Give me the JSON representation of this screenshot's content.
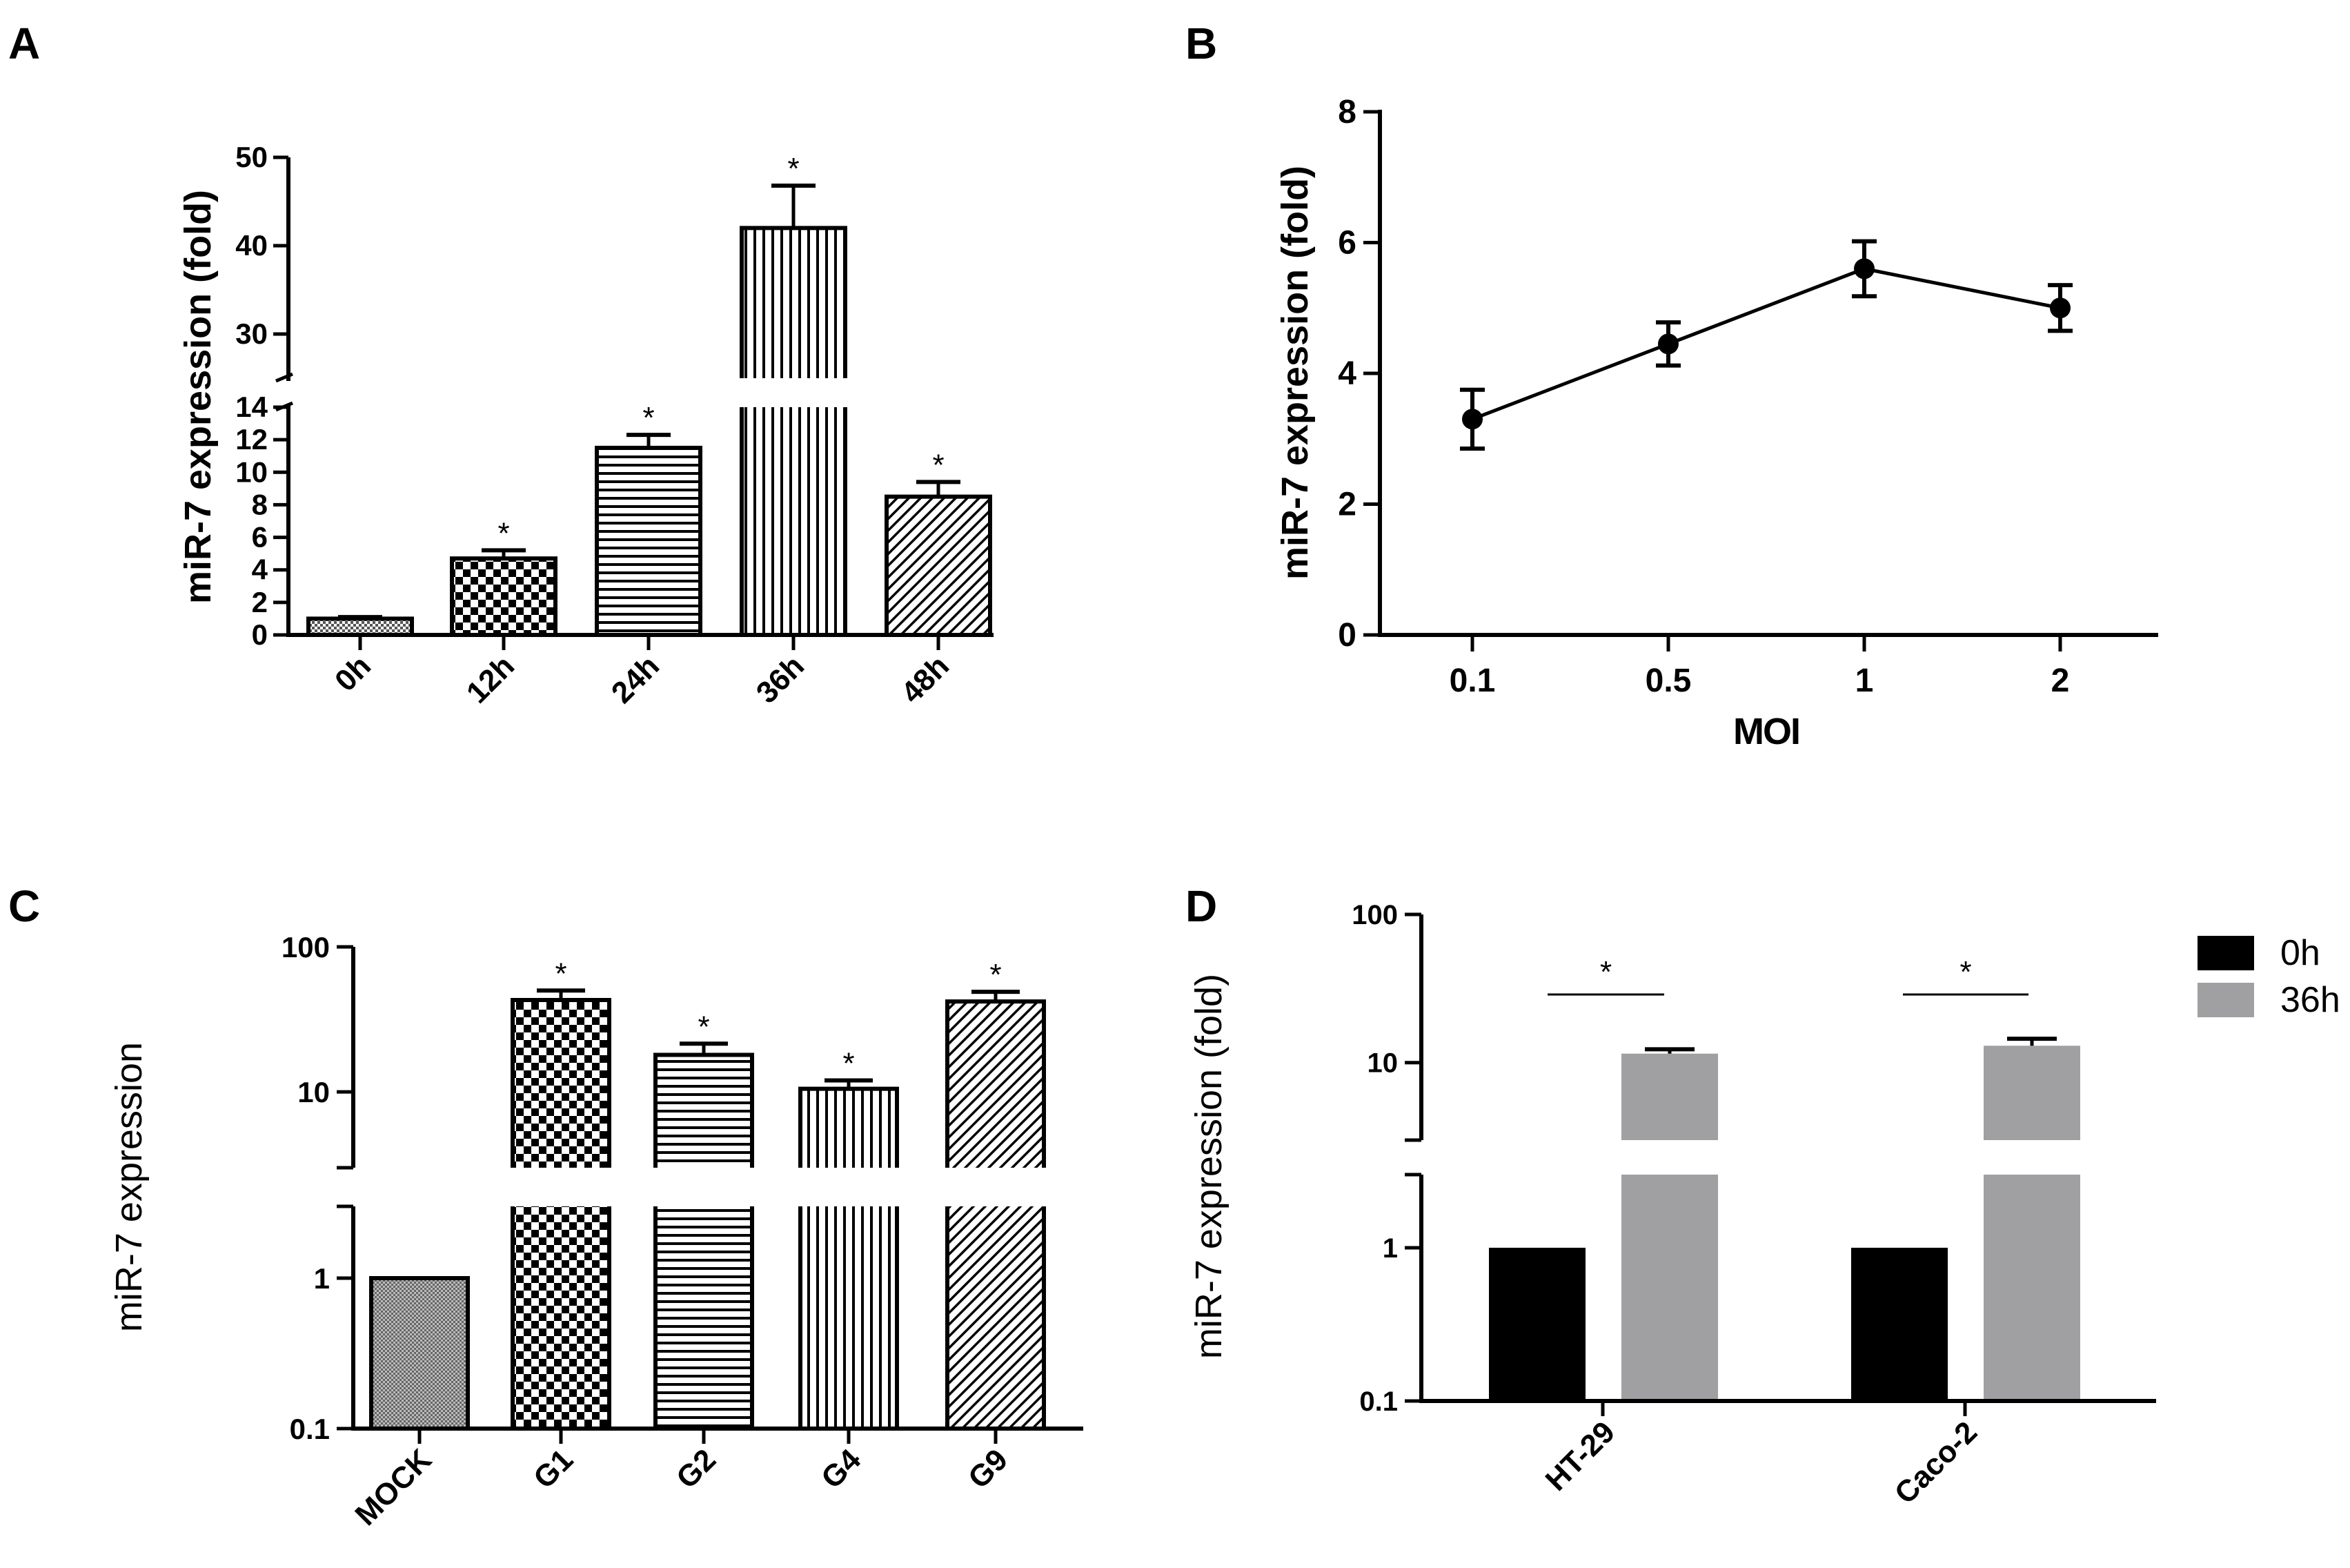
{
  "chart_data": [
    {
      "panel": "A",
      "type": "bar",
      "categories": [
        "0h",
        "12h",
        "24h",
        "36h",
        "48h"
      ],
      "values": [
        1.0,
        4.7,
        11.5,
        42.0,
        8.5
      ],
      "errors": [
        0.1,
        0.5,
        0.8,
        4.8,
        0.9
      ],
      "significance": [
        "",
        "*",
        "*",
        "*",
        "*"
      ],
      "ylabel": "miR-7 expression (fold)",
      "xlabel": "",
      "axis_break": {
        "lower_range": [
          0,
          14
        ],
        "upper_range": [
          25,
          50
        ]
      },
      "yticks_lower": [
        "0",
        "2",
        "4",
        "6",
        "8",
        "10",
        "12",
        "14"
      ],
      "yticks_upper": [
        "30",
        "40",
        "50"
      ],
      "patterns": [
        "dots",
        "checker",
        "hlines",
        "vlines",
        "diag"
      ]
    },
    {
      "panel": "B",
      "type": "line",
      "categories": [
        "0.1",
        "0.5",
        "1",
        "2"
      ],
      "values": [
        3.3,
        4.45,
        5.6,
        5.0
      ],
      "errors": [
        0.45,
        0.33,
        0.42,
        0.35
      ],
      "ylabel": "miR-7 expression (fold)",
      "xlabel": "MOI",
      "ylim": [
        0,
        8
      ],
      "yticks": [
        "0",
        "2",
        "4",
        "6",
        "8"
      ]
    },
    {
      "panel": "C",
      "type": "bar",
      "categories": [
        "MOCK",
        "G1",
        "G2",
        "G4",
        "G9"
      ],
      "values": [
        1.0,
        43,
        18,
        10.5,
        42
      ],
      "errors": [
        0,
        7,
        3.5,
        1.5,
        7
      ],
      "significance": [
        "",
        "*",
        "*",
        "*",
        "*"
      ],
      "ylabel": "miR-7 expression",
      "xlabel": "",
      "yscale": "log",
      "axis_break": {
        "lower_range": [
          0.1,
          3
        ],
        "upper_range": [
          3,
          100
        ]
      },
      "yticks_lower": [
        "0.1",
        "1"
      ],
      "yticks_upper": [
        "10",
        "100"
      ],
      "patterns": [
        "fine",
        "checker",
        "hlines",
        "vlines",
        "diag"
      ]
    },
    {
      "panel": "D",
      "type": "bar",
      "categories": [
        "HT-29",
        "Caco-2"
      ],
      "series": [
        {
          "name": "0h",
          "values": [
            1.0,
            1.0
          ],
          "errors": [
            0,
            0
          ],
          "color": "#000000"
        },
        {
          "name": "36h",
          "values": [
            11.5,
            13
          ],
          "errors": [
            0.8,
            1.5
          ],
          "color": "#a0a0a3"
        }
      ],
      "significance": [
        "*",
        "*"
      ],
      "ylabel": "miR-7 expression (fold)",
      "xlabel": "",
      "yscale": "log",
      "axis_break": {
        "lower_range": [
          0.1,
          3
        ],
        "upper_range": [
          3,
          100
        ]
      },
      "yticks_lower": [
        "0.1",
        "1"
      ],
      "yticks_upper": [
        "10",
        "100"
      ],
      "legend": [
        "0h",
        "36h"
      ],
      "legend_position": "right"
    }
  ],
  "panel_letters": [
    "A",
    "B",
    "C",
    "D"
  ]
}
